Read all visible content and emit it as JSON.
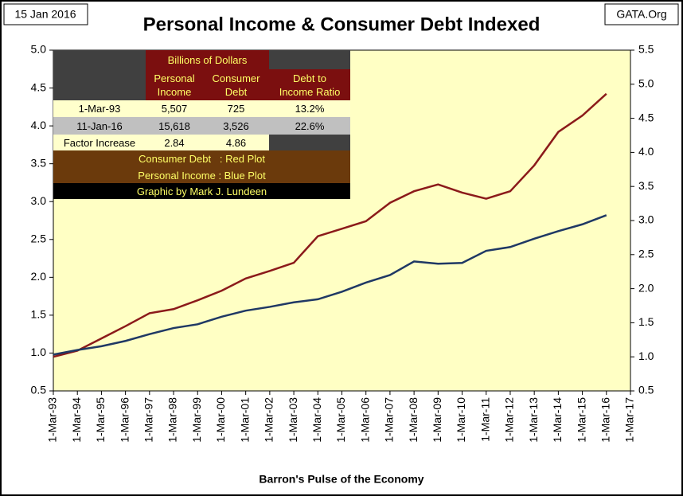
{
  "chart_data": {
    "type": "line",
    "title": "Personal Income & Consumer Debt Indexed",
    "date_label": "15 Jan 2016",
    "source": "GATA.Org",
    "x_label": "Barron's Pulse of the Economy",
    "categories": [
      "1-Mar-93",
      "1-Mar-94",
      "1-Mar-95",
      "1-Mar-96",
      "1-Mar-97",
      "1-Mar-98",
      "1-Mar-99",
      "1-Mar-00",
      "1-Mar-01",
      "1-Mar-02",
      "1-Mar-03",
      "1-Mar-04",
      "1-Mar-05",
      "1-Mar-06",
      "1-Mar-07",
      "1-Mar-08",
      "1-Mar-09",
      "1-Mar-10",
      "1-Mar-11",
      "1-Mar-12",
      "1-Mar-13",
      "1-Mar-14",
      "1-Mar-15",
      "1-Mar-16",
      "1-Mar-17"
    ],
    "series": [
      {
        "color": "#8b1a1a",
        "axis": "y2",
        "values": [
          1.0,
          1.09,
          1.27,
          1.45,
          1.64,
          1.7,
          1.83,
          1.97,
          2.15,
          2.26,
          2.38,
          2.77,
          2.88,
          2.99,
          3.26,
          3.43,
          3.53,
          3.41,
          3.32,
          3.43,
          3.81,
          4.3,
          4.54,
          4.86,
          null
        ]
      },
      {
        "color": "#1f3864",
        "values": [
          0.98,
          1.04,
          1.09,
          1.16,
          1.25,
          1.33,
          1.38,
          1.48,
          1.56,
          1.61,
          1.67,
          1.71,
          1.81,
          1.93,
          2.03,
          2.21,
          2.18,
          2.19,
          2.35,
          2.4,
          2.51,
          2.61,
          2.7,
          2.82,
          null
        ]
      }
    ],
    "ylim": [
      0.5,
      5.0
    ],
    "yticks": [
      0.5,
      {
        "value": 1,
        "label": "1.0"
      },
      1.5,
      {
        "value": 2,
        "label": "2.0"
      },
      2.5,
      {
        "value": 3,
        "label": "3.0"
      },
      3.5,
      {
        "value": 4,
        "label": "4.0"
      },
      4.5,
      {
        "value": 5,
        "label": "5.0"
      }
    ],
    "y2lim": [
      0.5,
      5.5
    ],
    "y2ticks": [
      0.5,
      {
        "value": 1,
        "label": "1.0"
      },
      1.5,
      {
        "value": 2,
        "label": "2.0"
      },
      2.5,
      {
        "value": 3,
        "label": "3.0"
      },
      3.5,
      {
        "value": 4,
        "label": "4.0"
      },
      4.5,
      {
        "value": 5,
        "label": "5.0"
      },
      5.5
    ]
  },
  "table": {
    "group_header": "Billions of Dollars",
    "headers": [
      "Personal Income",
      "Consumer Debt",
      "Debt to Income Ratio"
    ],
    "rows": [
      [
        "1-Mar-93",
        "5,507",
        "725",
        "13.2%"
      ],
      [
        "11-Jan-16",
        "15,618",
        "3,526",
        "22.6%"
      ],
      [
        "Factor Increase",
        "2.84",
        "4.86"
      ]
    ],
    "notes": [
      "Consumer Debt   : Red Plot",
      "Personal Income : Blue Plot"
    ],
    "credit": "Graphic by Mark J. Lundeen"
  }
}
